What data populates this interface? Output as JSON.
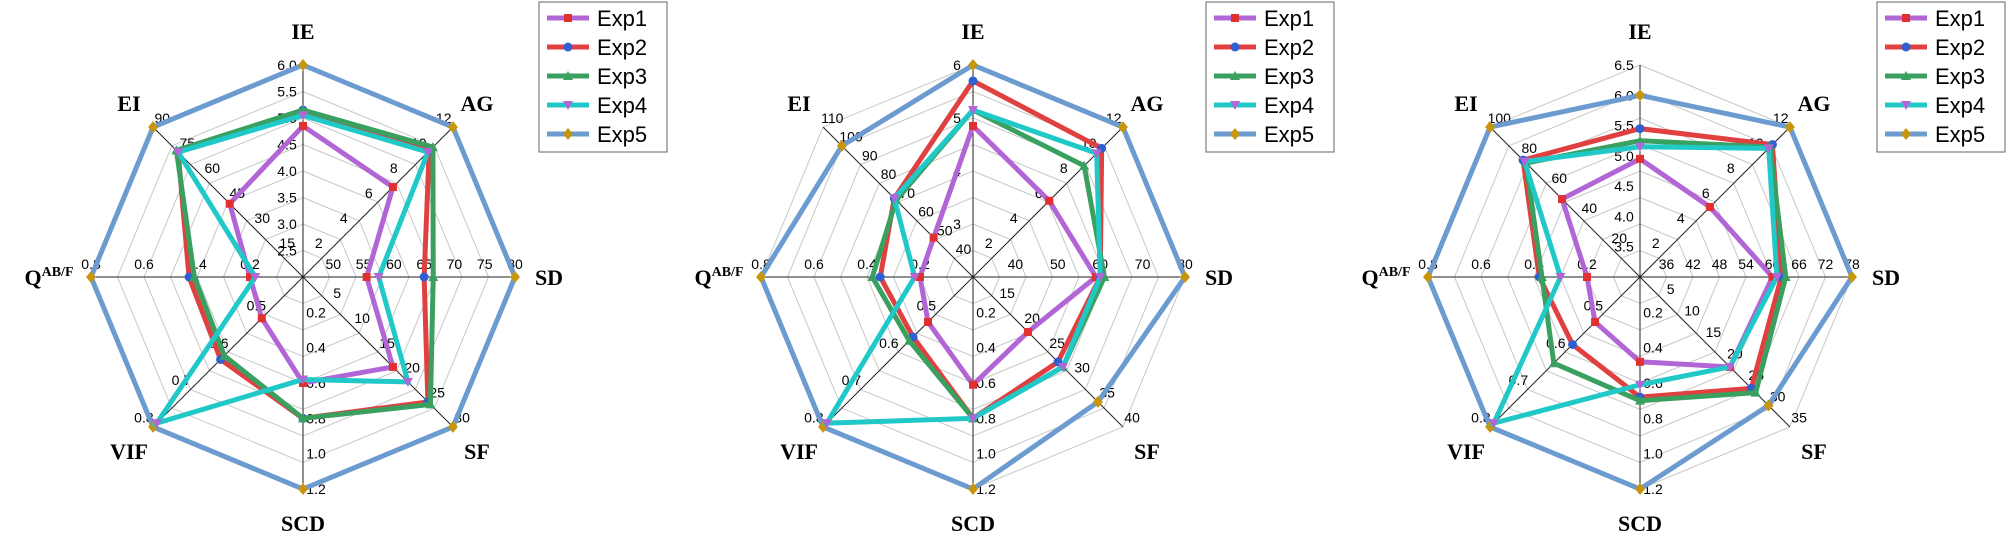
{
  "legend_entries": [
    "Exp1",
    "Exp2",
    "Exp3",
    "Exp4",
    "Exp5"
  ],
  "series_styles": [
    {
      "name": "Exp1",
      "color": "#B266D6",
      "marker": "square",
      "marker_color": "#E03030"
    },
    {
      "name": "Exp2",
      "color": "#E04040",
      "marker": "circle",
      "marker_color": "#2F5FD0"
    },
    {
      "name": "Exp3",
      "color": "#3AA060",
      "marker": "triangle",
      "marker_color": "#3AA060"
    },
    {
      "name": "Exp4",
      "color": "#20C8C8",
      "marker": "triangle-down",
      "marker_color": "#B266D6"
    },
    {
      "name": "Exp5",
      "color": "#6C9BD0",
      "marker": "diamond",
      "marker_color": "#C8960C"
    }
  ],
  "chart_data": [
    {
      "type": "radar",
      "grid": true,
      "legend_position": "top-right",
      "axes": [
        {
          "label": "IE",
          "min": 2.0,
          "max": 6.0,
          "ticks": [
            "2.5",
            "3.0",
            "3.5",
            "4.0",
            "4.5",
            "5.0",
            "5.5",
            "6.0"
          ]
        },
        {
          "label": "AG",
          "min": 0,
          "max": 12,
          "ticks": [
            "2",
            "4",
            "6",
            "8",
            "10",
            "12"
          ]
        },
        {
          "label": "SD",
          "min": 45,
          "max": 80,
          "ticks": [
            "50",
            "55",
            "60",
            "65",
            "70",
            "75",
            "80"
          ]
        },
        {
          "label": "SF",
          "min": 0,
          "max": 30,
          "ticks": [
            "5",
            "10",
            "15",
            "20",
            "25",
            "30"
          ]
        },
        {
          "label": "SCD",
          "min": 0.0,
          "max": 1.2,
          "ticks": [
            "0.2",
            "0.4",
            "0.6",
            "0.8",
            "1.0",
            "1.2"
          ]
        },
        {
          "label": "VIF",
          "min": 0.4,
          "max": 0.8,
          "ticks": [
            "0.5",
            "0.6",
            "0.7",
            "0.8"
          ]
        },
        {
          "label": "QAB/F",
          "min": 0.0,
          "max": 0.8,
          "ticks": [
            "0.2",
            "0.4",
            "0.6",
            "0.8"
          ]
        },
        {
          "label": "EI",
          "min": 0,
          "max": 90,
          "ticks": [
            "15",
            "30",
            "45",
            "60",
            "75",
            "90"
          ]
        }
      ],
      "series": [
        {
          "name": "Exp1",
          "values": [
            4.85,
            7.2,
            55.5,
            18.0,
            0.6,
            0.51,
            0.2,
            44
          ]
        },
        {
          "name": "Exp2",
          "values": [
            5.15,
            10.1,
            65.0,
            25.0,
            0.8,
            0.62,
            0.43,
            75
          ]
        },
        {
          "name": "Exp3",
          "values": [
            5.15,
            10.4,
            66.5,
            25.5,
            0.8,
            0.61,
            0.41,
            76
          ]
        },
        {
          "name": "Exp4",
          "values": [
            5.05,
            10.0,
            57.5,
            21.0,
            0.58,
            0.79,
            0.18,
            75
          ]
        },
        {
          "name": "Exp5",
          "values": [
            6.0,
            12.0,
            80.0,
            30.0,
            1.2,
            0.8,
            0.8,
            90
          ]
        }
      ]
    },
    {
      "type": "radar",
      "grid": true,
      "legend_position": "top-right",
      "axes": [
        {
          "label": "IE",
          "min": 2,
          "max": 6,
          "ticks": [
            "3",
            "4",
            "5",
            "6"
          ]
        },
        {
          "label": "AG",
          "min": 0,
          "max": 12,
          "ticks": [
            "2",
            "4",
            "6",
            "8",
            "10",
            "12"
          ]
        },
        {
          "label": "SD",
          "min": 30,
          "max": 80,
          "ticks": [
            "40",
            "50",
            "60",
            "70",
            "80"
          ]
        },
        {
          "label": "SF",
          "min": 10,
          "max": 40,
          "ticks": [
            "15",
            "20",
            "25",
            "30",
            "35",
            "40"
          ]
        },
        {
          "label": "SCD",
          "min": 0.0,
          "max": 1.2,
          "ticks": [
            "0.2",
            "0.4",
            "0.6",
            "0.8",
            "1.0",
            "1.2"
          ]
        },
        {
          "label": "VIF",
          "min": 0.4,
          "max": 0.8,
          "ticks": [
            "0.5",
            "0.6",
            "0.7",
            "0.8"
          ]
        },
        {
          "label": "QAB/F",
          "min": 0.0,
          "max": 0.8,
          "ticks": [
            "0.2",
            "0.4",
            "0.6",
            "0.8"
          ]
        },
        {
          "label": "EI",
          "min": 30,
          "max": 110,
          "ticks": [
            "40",
            "50",
            "60",
            "70",
            "80",
            "90",
            "100",
            "110"
          ]
        }
      ],
      "series": [
        {
          "name": "Exp1",
          "values": [
            4.85,
            6.1,
            59,
            21,
            0.61,
            0.52,
            0.2,
            51
          ]
        },
        {
          "name": "Exp2",
          "values": [
            5.7,
            10.3,
            60,
            27,
            0.8,
            0.56,
            0.35,
            72
          ]
        },
        {
          "name": "Exp3",
          "values": [
            5.15,
            8.9,
            61,
            28,
            0.8,
            0.57,
            0.38,
            71
          ]
        },
        {
          "name": "Exp4",
          "values": [
            5.15,
            9.9,
            60,
            28,
            0.8,
            0.79,
            0.22,
            72
          ]
        },
        {
          "name": "Exp5",
          "values": [
            6,
            12,
            80,
            35,
            1.2,
            0.8,
            0.8,
            100
          ]
        }
      ]
    },
    {
      "type": "radar",
      "grid": true,
      "legend_position": "top-right",
      "axes": [
        {
          "label": "IE",
          "min": 3.0,
          "max": 6.5,
          "ticks": [
            "3.5",
            "4.0",
            "4.5",
            "5.0",
            "5.5",
            "6.0",
            "6.5"
          ]
        },
        {
          "label": "AG",
          "min": 0,
          "max": 12,
          "ticks": [
            "2",
            "4",
            "6",
            "8",
            "10",
            "12"
          ]
        },
        {
          "label": "SD",
          "min": 30,
          "max": 78,
          "ticks": [
            "36",
            "42",
            "48",
            "54",
            "60",
            "66",
            "72",
            "78"
          ]
        },
        {
          "label": "SF",
          "min": 0,
          "max": 35,
          "ticks": [
            "5",
            "10",
            "15",
            "20",
            "25",
            "30",
            "35"
          ]
        },
        {
          "label": "SCD",
          "min": 0.0,
          "max": 1.2,
          "ticks": [
            "0.2",
            "0.4",
            "0.6",
            "0.8",
            "1.0",
            "1.2"
          ]
        },
        {
          "label": "VIF",
          "min": 0.4,
          "max": 0.8,
          "ticks": [
            "0.5",
            "0.6",
            "0.7",
            "0.8"
          ]
        },
        {
          "label": "QAB/F",
          "min": 0.0,
          "max": 0.8,
          "ticks": [
            "0.2",
            "0.4",
            "0.6",
            "0.8"
          ]
        },
        {
          "label": "EI",
          "min": 0,
          "max": 100,
          "ticks": [
            "20",
            "40",
            "60",
            "80",
            "100"
          ]
        }
      ],
      "series": [
        {
          "name": "Exp1",
          "values": [
            4.95,
            5.6,
            60,
            21,
            0.48,
            0.52,
            0.2,
            52
          ]
        },
        {
          "name": "Exp2",
          "values": [
            5.45,
            10.6,
            62,
            26,
            0.68,
            0.58,
            0.38,
            78
          ]
        },
        {
          "name": "Exp3",
          "values": [
            5.25,
            10.4,
            63,
            27,
            0.7,
            0.63,
            0.37,
            76
          ]
        },
        {
          "name": "Exp4",
          "values": [
            5.15,
            10.3,
            61,
            21,
            0.61,
            0.79,
            0.3,
            77
          ]
        },
        {
          "name": "Exp5",
          "values": [
            6,
            12,
            78,
            30,
            1.2,
            0.8,
            0.8,
            100
          ]
        }
      ]
    }
  ]
}
